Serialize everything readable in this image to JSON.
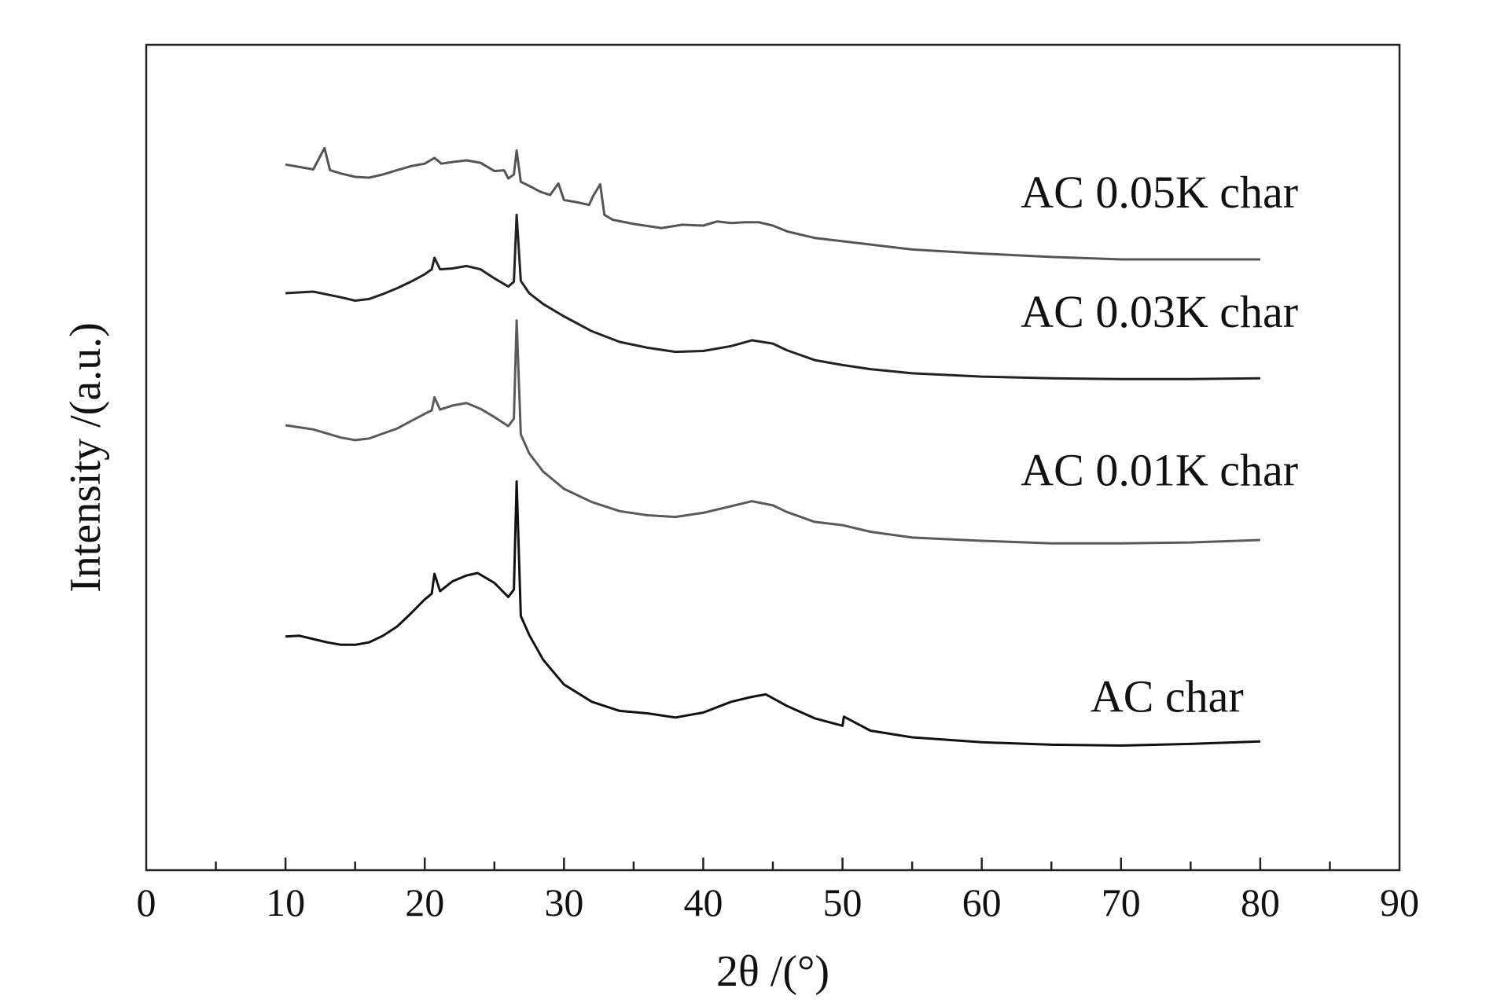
{
  "chart_data": {
    "type": "line",
    "title": "",
    "xlabel": "2θ /(°)",
    "ylabel": "Intensity /(a.u.)",
    "xlim": [
      0,
      90
    ],
    "ylim": [
      0,
      100
    ],
    "x_ticks": [
      0,
      10,
      20,
      30,
      40,
      50,
      60,
      70,
      80,
      90
    ],
    "x_tick_labels": [
      "0",
      "10",
      "20",
      "30",
      "40",
      "50",
      "60",
      "70",
      "80",
      "90"
    ],
    "y_ticks_shown": false,
    "grid": false,
    "legend": "labels next to curves (right side)",
    "series": [
      {
        "name": "AC 0.05K char",
        "color": "#555555",
        "points": [
          [
            10,
            85.5
          ],
          [
            11,
            85.2
          ],
          [
            12,
            84.9
          ],
          [
            12.8,
            87.5
          ],
          [
            13.2,
            84.8
          ],
          [
            14,
            84.4
          ],
          [
            15,
            84.0
          ],
          [
            16,
            83.9
          ],
          [
            17,
            84.3
          ],
          [
            18,
            84.8
          ],
          [
            19,
            85.3
          ],
          [
            20,
            85.6
          ],
          [
            20.7,
            86.3
          ],
          [
            21.2,
            85.6
          ],
          [
            22,
            85.8
          ],
          [
            23,
            86.0
          ],
          [
            24,
            85.7
          ],
          [
            25,
            84.7
          ],
          [
            25.7,
            84.8
          ],
          [
            26.0,
            83.8
          ],
          [
            26.4,
            84.3
          ],
          [
            26.6,
            87.2
          ],
          [
            26.9,
            83.4
          ],
          [
            27.5,
            82.9
          ],
          [
            28.3,
            82.2
          ],
          [
            29.0,
            81.8
          ],
          [
            29.6,
            83.2
          ],
          [
            30.0,
            81.2
          ],
          [
            31.0,
            80.9
          ],
          [
            31.8,
            80.6
          ],
          [
            32.1,
            81.7
          ],
          [
            32.6,
            83.1
          ],
          [
            32.9,
            79.4
          ],
          [
            33.5,
            78.8
          ],
          [
            35,
            78.3
          ],
          [
            37,
            77.8
          ],
          [
            38.5,
            78.2
          ],
          [
            40,
            78.1
          ],
          [
            41,
            78.6
          ],
          [
            42,
            78.4
          ],
          [
            43,
            78.5
          ],
          [
            44,
            78.5
          ],
          [
            45,
            78.1
          ],
          [
            46,
            77.4
          ],
          [
            48,
            76.6
          ],
          [
            50,
            76.2
          ],
          [
            55,
            75.2
          ],
          [
            60,
            74.7
          ],
          [
            65,
            74.3
          ],
          [
            70,
            74.0
          ],
          [
            75,
            74.0
          ],
          [
            80,
            74.0
          ]
        ]
      },
      {
        "name": "AC 0.03K char",
        "color": "#222222",
        "points": [
          [
            10,
            69.9
          ],
          [
            12,
            70.1
          ],
          [
            14,
            69.4
          ],
          [
            15,
            69.0
          ],
          [
            16,
            69.2
          ],
          [
            17,
            69.8
          ],
          [
            18,
            70.5
          ],
          [
            19,
            71.3
          ],
          [
            20,
            72.2
          ],
          [
            20.5,
            72.8
          ],
          [
            20.7,
            74.2
          ],
          [
            21.1,
            72.8
          ],
          [
            22,
            72.9
          ],
          [
            23,
            73.2
          ],
          [
            24,
            72.8
          ],
          [
            25,
            71.7
          ],
          [
            26,
            70.7
          ],
          [
            26.4,
            71.3
          ],
          [
            26.6,
            79.4
          ],
          [
            26.9,
            71.4
          ],
          [
            27.5,
            69.9
          ],
          [
            28.5,
            68.6
          ],
          [
            30,
            67.1
          ],
          [
            32,
            65.3
          ],
          [
            34,
            64.0
          ],
          [
            36,
            63.3
          ],
          [
            38,
            62.8
          ],
          [
            40,
            62.9
          ],
          [
            42,
            63.5
          ],
          [
            43.5,
            64.2
          ],
          [
            45,
            63.8
          ],
          [
            46,
            63.0
          ],
          [
            48,
            61.8
          ],
          [
            50,
            61.2
          ],
          [
            52,
            60.7
          ],
          [
            55,
            60.2
          ],
          [
            60,
            59.8
          ],
          [
            65,
            59.6
          ],
          [
            70,
            59.5
          ],
          [
            75,
            59.5
          ],
          [
            80,
            59.6
          ]
        ]
      },
      {
        "name": "AC 0.01K char",
        "color": "#5a5a5a",
        "points": [
          [
            10,
            53.9
          ],
          [
            12,
            53.4
          ],
          [
            14,
            52.4
          ],
          [
            15,
            52.1
          ],
          [
            16,
            52.3
          ],
          [
            17,
            52.9
          ],
          [
            18,
            53.5
          ],
          [
            19,
            54.4
          ],
          [
            20,
            55.3
          ],
          [
            20.5,
            55.7
          ],
          [
            20.7,
            57.3
          ],
          [
            21.1,
            55.8
          ],
          [
            22,
            56.3
          ],
          [
            23,
            56.6
          ],
          [
            24,
            55.9
          ],
          [
            25,
            54.9
          ],
          [
            26,
            53.8
          ],
          [
            26.4,
            54.7
          ],
          [
            26.6,
            66.6
          ],
          [
            26.9,
            52.8
          ],
          [
            27.5,
            50.5
          ],
          [
            28.5,
            48.3
          ],
          [
            30,
            46.2
          ],
          [
            32,
            44.6
          ],
          [
            34,
            43.5
          ],
          [
            36,
            43.0
          ],
          [
            38,
            42.8
          ],
          [
            40,
            43.3
          ],
          [
            42,
            44.1
          ],
          [
            43.5,
            44.7
          ],
          [
            45,
            44.2
          ],
          [
            46,
            43.4
          ],
          [
            48,
            42.2
          ],
          [
            50,
            41.8
          ],
          [
            52,
            41.0
          ],
          [
            55,
            40.3
          ],
          [
            60,
            39.9
          ],
          [
            65,
            39.6
          ],
          [
            70,
            39.6
          ],
          [
            75,
            39.7
          ],
          [
            80,
            40.0
          ]
        ]
      },
      {
        "name": "AC char",
        "color": "#111111",
        "points": [
          [
            10,
            28.3
          ],
          [
            11,
            28.4
          ],
          [
            12,
            28.0
          ],
          [
            13,
            27.6
          ],
          [
            14,
            27.3
          ],
          [
            15,
            27.3
          ],
          [
            16,
            27.6
          ],
          [
            17,
            28.4
          ],
          [
            18,
            29.5
          ],
          [
            19,
            31.1
          ],
          [
            20,
            32.8
          ],
          [
            20.5,
            33.5
          ],
          [
            20.7,
            35.9
          ],
          [
            21.1,
            33.8
          ],
          [
            22,
            35.0
          ],
          [
            23,
            35.7
          ],
          [
            23.8,
            36.0
          ],
          [
            25,
            34.8
          ],
          [
            26,
            33.1
          ],
          [
            26.4,
            34.0
          ],
          [
            26.6,
            47.1
          ],
          [
            26.9,
            30.8
          ],
          [
            27.5,
            28.5
          ],
          [
            28.5,
            25.5
          ],
          [
            30,
            22.5
          ],
          [
            32,
            20.4
          ],
          [
            34,
            19.3
          ],
          [
            36,
            19.0
          ],
          [
            38,
            18.5
          ],
          [
            40,
            19.1
          ],
          [
            42,
            20.4
          ],
          [
            43.5,
            21.0
          ],
          [
            44.5,
            21.3
          ],
          [
            46,
            19.9
          ],
          [
            48,
            18.4
          ],
          [
            50,
            17.5
          ],
          [
            50.1,
            18.6
          ],
          [
            52,
            16.9
          ],
          [
            55,
            16.1
          ],
          [
            60,
            15.5
          ],
          [
            65,
            15.2
          ],
          [
            70,
            15.1
          ],
          [
            75,
            15.3
          ],
          [
            80,
            15.6
          ]
        ]
      }
    ],
    "annotations": [
      {
        "text": "AC 0.05K char",
        "x": 62.8,
        "y": 80.3
      },
      {
        "text": "AC 0.03K char",
        "x": 62.8,
        "y": 65.8
      },
      {
        "text": "AC 0.01K char",
        "x": 62.8,
        "y": 46.6
      },
      {
        "text": "AC char",
        "x": 67.8,
        "y": 19.2
      }
    ]
  }
}
